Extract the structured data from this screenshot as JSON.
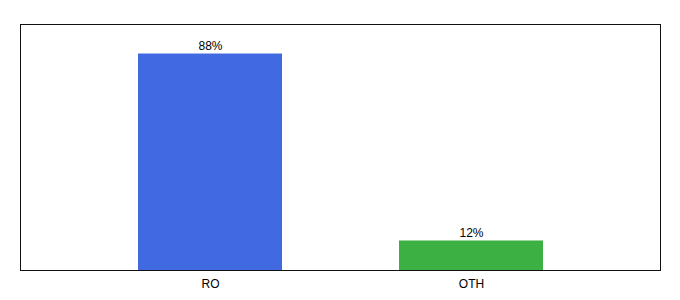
{
  "chart_data": {
    "type": "bar",
    "categories": [
      "RO",
      "OTH"
    ],
    "values": [
      88,
      12
    ],
    "value_labels": [
      "88%",
      "12%"
    ],
    "colors": [
      "#4169E1",
      "#3CB043"
    ],
    "ylim": [
      0,
      100
    ],
    "grid": false,
    "data_labels": true,
    "tick_labels": "x"
  }
}
